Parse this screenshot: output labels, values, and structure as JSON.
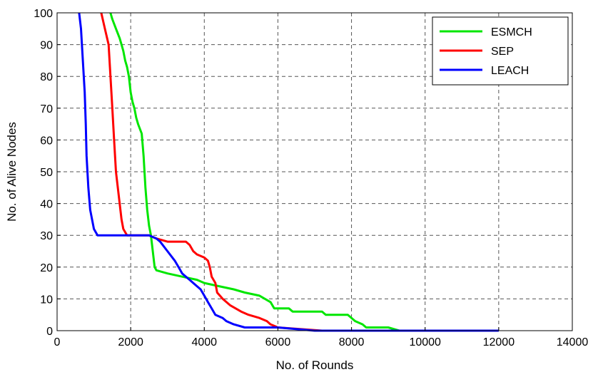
{
  "chart_data": {
    "type": "line",
    "title": "",
    "xlabel": "No. of Rounds",
    "ylabel": "No. of Alive Nodes",
    "xlim": [
      0,
      14000
    ],
    "ylim": [
      0,
      100
    ],
    "xticks": [
      0,
      2000,
      4000,
      6000,
      8000,
      10000,
      12000,
      14000
    ],
    "yticks": [
      0,
      10,
      20,
      30,
      40,
      50,
      60,
      70,
      80,
      90,
      100
    ],
    "grid": true,
    "grid_style": "dashed",
    "legend_position": "top-right",
    "series": [
      {
        "name": "ESMCH",
        "color": "#00e600",
        "points": [
          [
            1450,
            100
          ],
          [
            1500,
            98
          ],
          [
            1600,
            95
          ],
          [
            1700,
            92
          ],
          [
            1750,
            90
          ],
          [
            1800,
            88
          ],
          [
            1850,
            85
          ],
          [
            1900,
            83
          ],
          [
            1950,
            80
          ],
          [
            2000,
            75
          ],
          [
            2050,
            72
          ],
          [
            2100,
            70
          ],
          [
            2150,
            67
          ],
          [
            2200,
            65
          ],
          [
            2300,
            62
          ],
          [
            2350,
            55
          ],
          [
            2400,
            45
          ],
          [
            2450,
            38
          ],
          [
            2500,
            33
          ],
          [
            2550,
            30
          ],
          [
            2600,
            25
          ],
          [
            2650,
            20
          ],
          [
            2700,
            19
          ],
          [
            3000,
            18
          ],
          [
            3400,
            17
          ],
          [
            3800,
            16
          ],
          [
            4000,
            15
          ],
          [
            4400,
            14
          ],
          [
            4800,
            13
          ],
          [
            5100,
            12
          ],
          [
            5500,
            11
          ],
          [
            5800,
            9
          ],
          [
            5900,
            7
          ],
          [
            6300,
            7
          ],
          [
            6400,
            6
          ],
          [
            7200,
            6
          ],
          [
            7300,
            5
          ],
          [
            7900,
            5
          ],
          [
            8000,
            4
          ],
          [
            8100,
            3
          ],
          [
            8300,
            2
          ],
          [
            8400,
            1
          ],
          [
            8500,
            1
          ],
          [
            9000,
            1
          ],
          [
            9300,
            0
          ],
          [
            12000,
            0
          ]
        ]
      },
      {
        "name": "SEP",
        "color": "#ff0000",
        "points": [
          [
            1200,
            100
          ],
          [
            1300,
            95
          ],
          [
            1400,
            90
          ],
          [
            1450,
            80
          ],
          [
            1500,
            70
          ],
          [
            1550,
            60
          ],
          [
            1600,
            50
          ],
          [
            1700,
            40
          ],
          [
            1750,
            35
          ],
          [
            1800,
            32
          ],
          [
            1900,
            30
          ],
          [
            2000,
            30
          ],
          [
            2200,
            30
          ],
          [
            2500,
            30
          ],
          [
            2700,
            29
          ],
          [
            3000,
            28
          ],
          [
            3500,
            28
          ],
          [
            3600,
            27
          ],
          [
            3700,
            25
          ],
          [
            3800,
            24
          ],
          [
            4000,
            23
          ],
          [
            4100,
            22
          ],
          [
            4150,
            20
          ],
          [
            4200,
            17
          ],
          [
            4300,
            15
          ],
          [
            4350,
            12
          ],
          [
            4500,
            10
          ],
          [
            4700,
            8
          ],
          [
            5000,
            6
          ],
          [
            5200,
            5
          ],
          [
            5500,
            4
          ],
          [
            5700,
            3
          ],
          [
            5800,
            2
          ],
          [
            6000,
            1
          ],
          [
            7200,
            0
          ]
        ]
      },
      {
        "name": "LEACH",
        "color": "#0000ff",
        "points": [
          [
            600,
            100
          ],
          [
            650,
            95
          ],
          [
            700,
            85
          ],
          [
            750,
            75
          ],
          [
            780,
            65
          ],
          [
            800,
            55
          ],
          [
            850,
            45
          ],
          [
            900,
            38
          ],
          [
            950,
            35
          ],
          [
            1000,
            32
          ],
          [
            1100,
            30
          ],
          [
            1500,
            30
          ],
          [
            2000,
            30
          ],
          [
            2500,
            30
          ],
          [
            2700,
            29
          ],
          [
            2800,
            28
          ],
          [
            3000,
            25
          ],
          [
            3200,
            22
          ],
          [
            3300,
            20
          ],
          [
            3400,
            18
          ],
          [
            3500,
            17
          ],
          [
            3600,
            16
          ],
          [
            3700,
            15
          ],
          [
            3800,
            14
          ],
          [
            3900,
            13
          ],
          [
            4000,
            11
          ],
          [
            4100,
            9
          ],
          [
            4200,
            7
          ],
          [
            4300,
            5
          ],
          [
            4500,
            4
          ],
          [
            4600,
            3
          ],
          [
            4800,
            2
          ],
          [
            5100,
            1
          ],
          [
            5400,
            1
          ],
          [
            6000,
            1
          ],
          [
            7000,
            0
          ],
          [
            12000,
            0
          ]
        ]
      }
    ]
  }
}
